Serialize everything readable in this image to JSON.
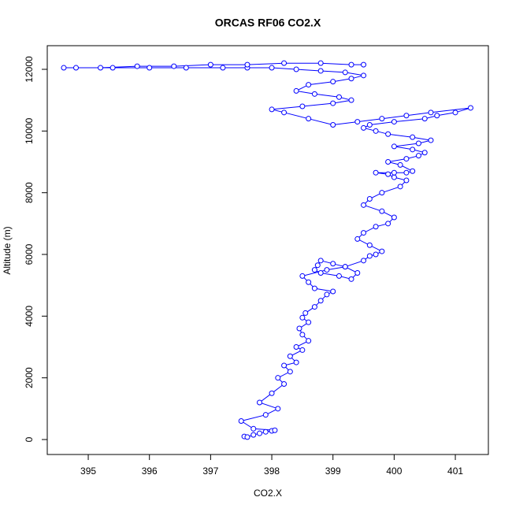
{
  "chart_data": {
    "type": "line",
    "markers": "circle",
    "title": "ORCAS RF06 CO2.X",
    "xlabel": "CO2.X",
    "ylabel": "Altitude (m)",
    "color": "#0000ff",
    "x": [
      397.55,
      397.6,
      397.7,
      397.8,
      397.9,
      398.0,
      398.05,
      397.7,
      397.5,
      397.9,
      398.1,
      397.8,
      398.0,
      398.2,
      398.1,
      398.3,
      398.2,
      398.4,
      398.3,
      398.5,
      398.4,
      398.6,
      398.5,
      398.45,
      398.6,
      398.5,
      398.55,
      398.7,
      398.8,
      398.9,
      399.0,
      398.7,
      398.6,
      398.5,
      398.9,
      399.2,
      399.0,
      398.8,
      398.75,
      398.7,
      398.8,
      399.1,
      399.3,
      399.4,
      399.2,
      399.5,
      399.6,
      399.7,
      399.8,
      399.6,
      399.4,
      399.5,
      399.7,
      399.9,
      400.0,
      399.8,
      399.5,
      399.6,
      399.8,
      400.1,
      400.2,
      400.0,
      399.9,
      399.7,
      400.0,
      400.2,
      400.3,
      400.1,
      399.9,
      400.2,
      400.4,
      400.5,
      400.3,
      400.0,
      400.4,
      400.6,
      400.3,
      399.9,
      399.7,
      399.5,
      399.6,
      400.0,
      400.5,
      400.7,
      401.0,
      401.25,
      400.6,
      400.2,
      399.8,
      399.4,
      399.0,
      398.6,
      398.2,
      398.0,
      398.5,
      399.0,
      399.3,
      399.1,
      398.7,
      398.4,
      398.6,
      399.0,
      399.3,
      399.5,
      399.2,
      398.8,
      398.4,
      398.0,
      397.6,
      397.2,
      396.6,
      396.0,
      395.4,
      394.8,
      394.6,
      395.2,
      395.8,
      396.4,
      397.0,
      397.6,
      398.2,
      398.8,
      399.3,
      399.5
    ],
    "values": [
      100,
      80,
      150,
      200,
      250,
      280,
      300,
      350,
      600,
      800,
      1000,
      1200,
      1500,
      1800,
      2000,
      2200,
      2400,
      2500,
      2700,
      2900,
      3000,
      3200,
      3400,
      3600,
      3800,
      3950,
      4100,
      4300,
      4500,
      4700,
      4800,
      4900,
      5100,
      5300,
      5500,
      5600,
      5700,
      5800,
      5650,
      5500,
      5400,
      5300,
      5200,
      5400,
      5600,
      5800,
      5950,
      6000,
      6100,
      6300,
      6500,
      6700,
      6900,
      7000,
      7200,
      7400,
      7600,
      7800,
      8000,
      8200,
      8400,
      8500,
      8600,
      8650,
      8650,
      8650,
      8700,
      8900,
      9000,
      9100,
      9200,
      9300,
      9400,
      9500,
      9600,
      9700,
      9800,
      9900,
      10000,
      10100,
      10200,
      10300,
      10400,
      10500,
      10600,
      10750,
      10600,
      10500,
      10400,
      10300,
      10200,
      10400,
      10600,
      10700,
      10800,
      10900,
      11000,
      11100,
      11200,
      11300,
      11500,
      11600,
      11700,
      11800,
      11900,
      11950,
      12000,
      12050,
      12050,
      12050,
      12050,
      12050,
      12050,
      12050,
      12050,
      12050,
      12100,
      12100,
      12150,
      12150,
      12200,
      12200,
      12150,
      12150
    ],
    "xlim": [
      394.33,
      401.54
    ],
    "xticks": [
      395,
      396,
      397,
      398,
      399,
      400,
      401
    ],
    "ylim": [
      -485,
      12766
    ],
    "yticks": [
      0,
      2000,
      4000,
      6000,
      8000,
      10000,
      12000
    ]
  }
}
